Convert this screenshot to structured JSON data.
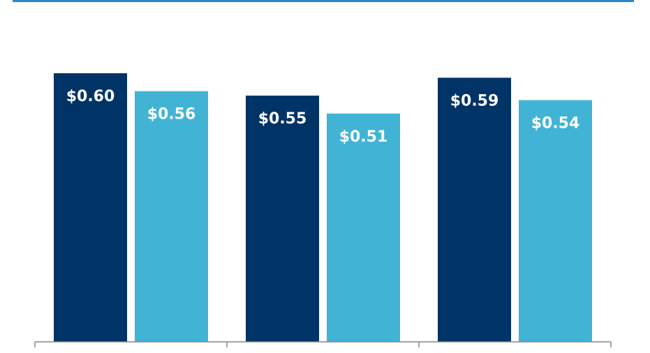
{
  "colors": {
    "accent_rule": "#2E86C9",
    "series_dark": "#003366",
    "series_light": "#41B4D6",
    "axis": "#888888",
    "label_text": "#ffffff"
  },
  "chart_data": {
    "type": "bar",
    "categories": [
      "",
      "",
      ""
    ],
    "series": [
      {
        "values": [
          0.6,
          0.55,
          0.59
        ],
        "labels": [
          "$0.60",
          "$0.55",
          "$0.59"
        ],
        "color": "#003366"
      },
      {
        "values": [
          0.56,
          0.51,
          0.54
        ],
        "labels": [
          "$0.56",
          "$0.51",
          "$0.54"
        ],
        "color": "#41B4D6"
      }
    ],
    "title": "",
    "xlabel": "",
    "ylabel": "",
    "ylim": [
      0,
      0.6
    ],
    "grid": false,
    "legend": "none"
  }
}
